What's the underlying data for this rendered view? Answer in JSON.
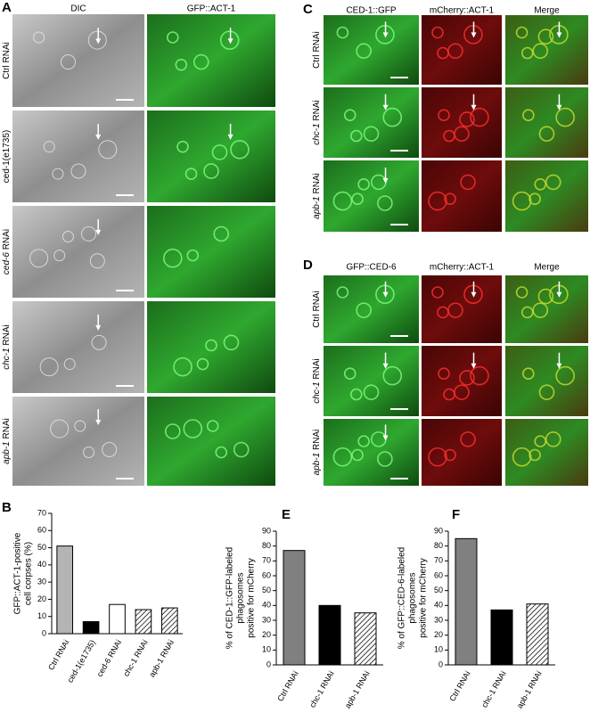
{
  "panel_a": {
    "label": "A",
    "headers": [
      "DIC",
      "GFP::ACT-1"
    ],
    "rows": [
      [
        "Ctrl RNAi"
      ],
      [
        "ced-1(e1735)"
      ],
      [
        "ced-6",
        " RNAi"
      ],
      [
        "chc-1",
        " RNAi"
      ],
      [
        "apb-1",
        " RNAi"
      ]
    ]
  },
  "panel_c": {
    "label": "C",
    "headers": [
      "CED-1::GFP",
      "mCherry::ACT-1",
      "Merge"
    ],
    "rows": [
      [
        "Ctrl RNAi"
      ],
      [
        "chc-1",
        " RNAi"
      ],
      [
        "apb-1",
        " RNAi"
      ]
    ]
  },
  "panel_d": {
    "label": "D",
    "headers": [
      "GFP::CED-6",
      "mCherry::ACT-1",
      "Merge"
    ],
    "rows": [
      [
        "Ctrl RNAi"
      ],
      [
        "chc-1",
        " RNAi"
      ],
      [
        "apb-1",
        " RNAi"
      ]
    ]
  },
  "chart_data": [
    {
      "type": "bar",
      "panel": "B",
      "ylabel": [
        "GFP::ACT-1-positive",
        "cell corpses (%)"
      ],
      "categories": [
        "Ctrl RNAi",
        "ced-1(e1735)",
        "ced-6 RNAi",
        "chc-1 RNAi",
        "apb-1 RNAi"
      ],
      "values": [
        51,
        7,
        17,
        14,
        15
      ],
      "colors": [
        "#b4b4b4",
        "#000000",
        "#ffffff",
        "hatch",
        "hatch"
      ],
      "ylim": [
        0,
        70
      ],
      "yticks": [
        0,
        10,
        20,
        30,
        40,
        50,
        60,
        70
      ]
    },
    {
      "type": "bar",
      "panel": "E",
      "ylabel": [
        "% of CED-1::GFP-labeled",
        "phagosomes",
        "positive for mCherry"
      ],
      "categories": [
        "Ctrl RNAi",
        "chc-1 RNAi",
        "apb-1 RNAi"
      ],
      "values": [
        77,
        40,
        35
      ],
      "colors": [
        "#808080",
        "#000000",
        "hatch"
      ],
      "ylim": [
        0,
        90
      ],
      "yticks": [
        0,
        10,
        20,
        30,
        40,
        50,
        60,
        70,
        80,
        90
      ]
    },
    {
      "type": "bar",
      "panel": "F",
      "ylabel": [
        "% of GFP::CED-6-labeled",
        "phagosomes",
        "positive for mCherry"
      ],
      "categories": [
        "Ctrl RNAi",
        "chc-1 RNAi",
        "apb-1 RNAi"
      ],
      "values": [
        85,
        37,
        41
      ],
      "colors": [
        "#808080",
        "#000000",
        "hatch"
      ],
      "ylim": [
        0,
        90
      ],
      "yticks": [
        0,
        10,
        20,
        30,
        40,
        50,
        60,
        70,
        80,
        90
      ]
    }
  ]
}
